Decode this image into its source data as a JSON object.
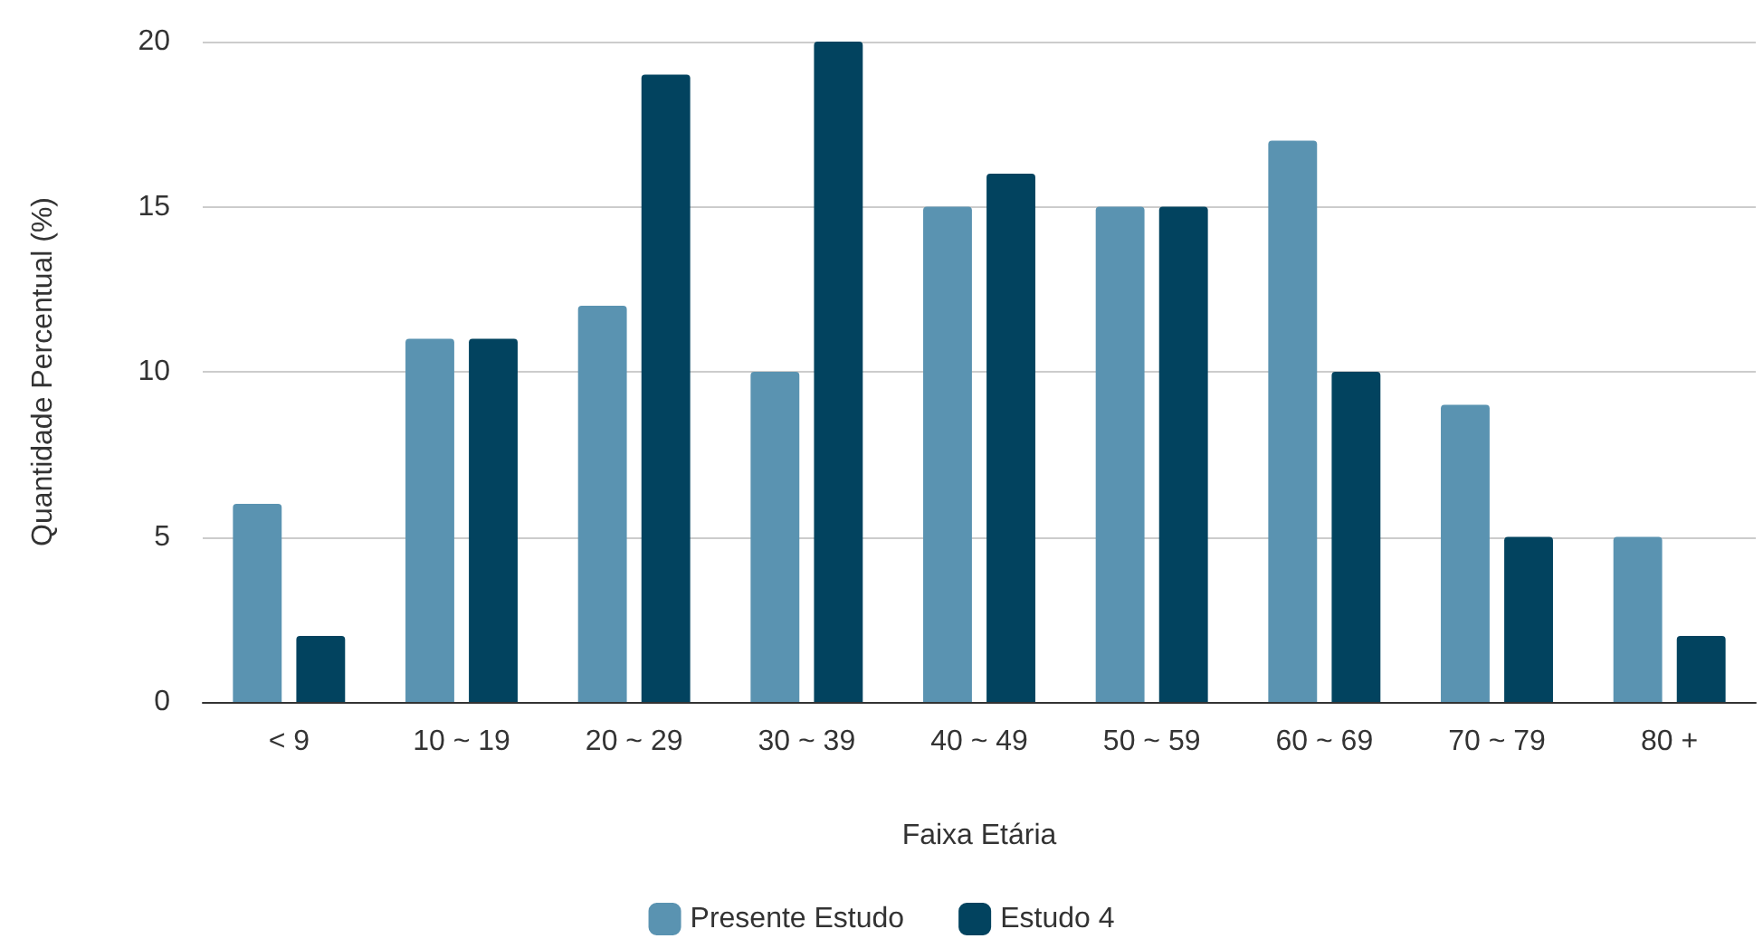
{
  "chart_data": {
    "type": "bar",
    "xlabel": "Faixa Etária",
    "ylabel": "Quantidade Percentual (%)",
    "categories": [
      "< 9",
      "10 ~ 19",
      "20 ~ 29",
      "30 ~ 39",
      "40 ~ 49",
      "50 ~ 59",
      "60 ~ 69",
      "70 ~ 79",
      "80 +"
    ],
    "series": [
      {
        "name": "Presente Estudo",
        "color": "#5a93b1",
        "values": [
          6,
          11,
          12,
          10,
          15,
          15,
          17,
          9,
          5
        ]
      },
      {
        "name": "Estudo 4",
        "color": "#02435f",
        "values": [
          2,
          11,
          19,
          20,
          16,
          15,
          10,
          5,
          2
        ]
      }
    ],
    "ylim": [
      0,
      20
    ],
    "yticks": [
      0,
      5,
      10,
      15,
      20
    ],
    "grid": "y",
    "legend": "bottom"
  }
}
